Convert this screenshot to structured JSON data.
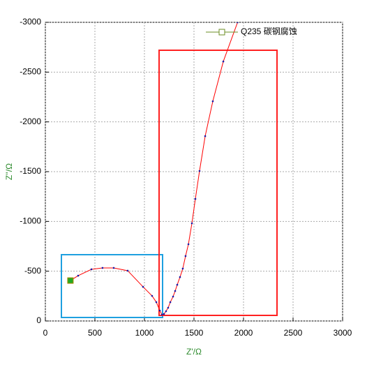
{
  "chart_data": {
    "type": "line",
    "x_label": "Z'/Ω",
    "y_label": "Z''/Ω",
    "x": [
      253,
      331,
      465,
      577,
      690,
      831,
      986,
      1077,
      1120,
      1155,
      1176,
      1197,
      1218,
      1239,
      1261,
      1289,
      1310,
      1331,
      1359,
      1387,
      1415,
      1444,
      1479,
      1514,
      1556,
      1613,
      1690,
      1796,
      1940
    ],
    "series": [
      {
        "name": "Q235 碳钢腐蚀",
        "color": "#ff0000",
        "marker_color": "#1a1aa8",
        "legend_color": "#6b8e23",
        "values": [
          -406,
          -455,
          -519,
          -533,
          -533,
          -505,
          -343,
          -252,
          -189,
          -105,
          -63,
          -70,
          -98,
          -133,
          -189,
          -245,
          -301,
          -364,
          -441,
          -526,
          -652,
          -771,
          -981,
          -1226,
          -1507,
          -1857,
          -2207,
          -2607,
          -3000
        ]
      }
    ],
    "xlim": [
      0,
      3000
    ],
    "xticks": [
      0,
      500,
      1000,
      1500,
      2000,
      2500,
      3000
    ],
    "ylim": [
      0,
      -3000
    ],
    "yticks": [
      0,
      -500,
      -1000,
      -1500,
      -2000,
      -2500,
      -3000
    ],
    "grid": true,
    "legend": "top-right"
  }
}
